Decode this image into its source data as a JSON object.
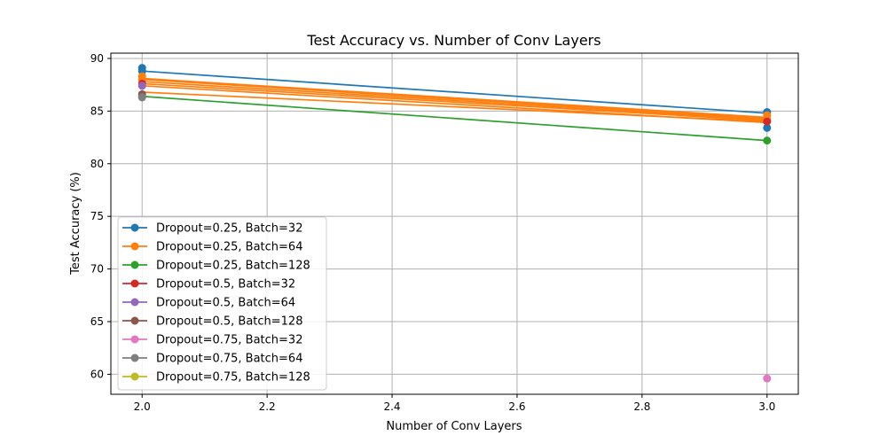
{
  "chart_data": {
    "type": "line",
    "title": "Test Accuracy vs. Number of Conv Layers",
    "xlabel": "Number of Conv Layers",
    "ylabel": "Test Accuracy (%)",
    "xlim": [
      1.95,
      3.05
    ],
    "ylim": [
      58.1,
      90.5
    ],
    "xticks": [
      2.0,
      2.2,
      2.4,
      2.6,
      2.8,
      3.0
    ],
    "xtick_labels": [
      "2.0",
      "2.2",
      "2.4",
      "2.6",
      "2.8",
      "3.0"
    ],
    "yticks": [
      60,
      65,
      70,
      75,
      80,
      85,
      90
    ],
    "ytick_labels": [
      "60",
      "65",
      "70",
      "75",
      "80",
      "85",
      "90"
    ],
    "grid": true,
    "legend_position": "lower-left",
    "series": [
      {
        "name": "Dropout=0.25, Batch=32",
        "color": "#1f77b4",
        "x": [
          2,
          3
        ],
        "y": [
          88.8,
          84.8
        ],
        "points": [
          [
            2,
            89.1
          ],
          [
            2,
            88.8
          ],
          [
            3,
            84.9
          ],
          [
            3,
            83.4
          ]
        ]
      },
      {
        "name": "Dropout=0.25, Batch=64",
        "color": "#ff7f0e",
        "x": [
          2,
          3
        ],
        "y": [
          88.1,
          84.3
        ],
        "points": [
          [
            2,
            88.3
          ],
          [
            2,
            88.0
          ],
          [
            3,
            84.6
          ],
          [
            3,
            84.2
          ]
        ]
      },
      {
        "name": "Dropout=0.25, Batch=128",
        "color": "#2ca02c",
        "x": [
          2,
          3
        ],
        "y": [
          86.4,
          82.2
        ],
        "points": [
          [
            2,
            86.4
          ],
          [
            3,
            82.2
          ]
        ]
      },
      {
        "name": "Dropout=0.5, Batch=32",
        "color": "#d62728",
        "x": [
          2,
          3
        ],
        "y": [
          87.6,
          83.9
        ],
        "points": [
          [
            2,
            87.6
          ],
          [
            3,
            84.0
          ]
        ]
      },
      {
        "name": "Dropout=0.5, Batch=64",
        "color": "#9467bd",
        "x": [
          2,
          3
        ],
        "y": [
          87.4,
          84.0
        ],
        "points": [
          [
            2,
            87.4
          ]
        ]
      },
      {
        "name": "Dropout=0.5, Batch=128",
        "color": "#8c564b",
        "x": [
          2,
          3
        ],
        "y": [
          86.7,
          84.1
        ],
        "points": [
          [
            2,
            86.6
          ]
        ]
      },
      {
        "name": "Dropout=0.75, Batch=32",
        "color": "#e377c2",
        "x": [
          2,
          3
        ],
        "y": [
          86.5,
          59.6
        ],
        "points": [
          [
            3,
            59.6
          ]
        ]
      },
      {
        "name": "Dropout=0.75, Batch=64",
        "color": "#7f7f7f",
        "x": [
          2,
          3
        ],
        "y": [
          86.3,
          84.0
        ],
        "points": [
          [
            2,
            86.3
          ]
        ]
      },
      {
        "name": "Dropout=0.75, Batch=128",
        "color": "#bcbd22",
        "x": [
          2,
          3
        ],
        "y": [
          87.3,
          84.2
        ],
        "points": []
      }
    ],
    "visible_lines": [
      {
        "color": "#1f77b4",
        "x": [
          2,
          3
        ],
        "y": [
          88.8,
          84.8
        ]
      },
      {
        "color": "#2ca02c",
        "x": [
          2,
          3
        ],
        "y": [
          86.4,
          82.2
        ]
      },
      {
        "color": "#ff7f0e",
        "x": [
          2,
          3
        ],
        "y": [
          86.8,
          84.0
        ]
      },
      {
        "color": "#ff7f0e",
        "x": [
          2,
          3
        ],
        "y": [
          87.4,
          83.9
        ]
      },
      {
        "color": "#ff7f0e",
        "x": [
          2,
          3
        ],
        "y": [
          87.6,
          84.1
        ]
      },
      {
        "color": "#ff7f0e",
        "x": [
          2,
          3
        ],
        "y": [
          87.8,
          84.2
        ]
      },
      {
        "color": "#ff7f0e",
        "x": [
          2,
          3
        ],
        "y": [
          88.0,
          84.3
        ]
      },
      {
        "color": "#ff7f0e",
        "x": [
          2,
          3
        ],
        "y": [
          88.1,
          84.4
        ]
      }
    ]
  }
}
